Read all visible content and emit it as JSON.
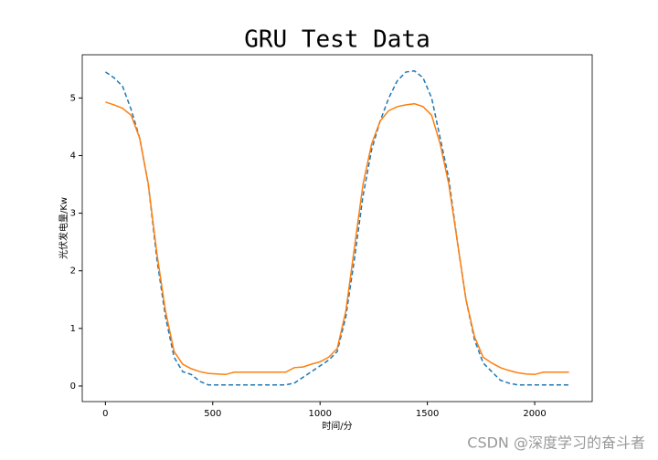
{
  "chart_data": {
    "type": "line",
    "title": "GRU Test Data",
    "xlabel": "时间/分",
    "ylabel": "光伏发电量/Kw",
    "x": [
      0,
      40,
      80,
      120,
      160,
      200,
      240,
      280,
      320,
      360,
      400,
      440,
      480,
      520,
      560,
      600,
      640,
      680,
      720,
      760,
      800,
      840,
      880,
      920,
      960,
      1000,
      1040,
      1080,
      1120,
      1160,
      1200,
      1240,
      1280,
      1320,
      1360,
      1400,
      1440,
      1480,
      1520,
      1560,
      1600,
      1640,
      1680,
      1720,
      1760,
      1800,
      1840,
      1880,
      1920,
      1960,
      2000,
      2040,
      2080,
      2120,
      2160
    ],
    "series": [
      {
        "color": "#1f77b4",
        "dashed": true,
        "values": [
          5.45,
          5.35,
          5.2,
          4.8,
          4.3,
          3.5,
          2.2,
          1.2,
          0.5,
          0.25,
          0.2,
          0.08,
          0.02,
          0.02,
          0.02,
          0.02,
          0.02,
          0.02,
          0.02,
          0.02,
          0.02,
          0.02,
          0.05,
          0.15,
          0.25,
          0.35,
          0.45,
          0.6,
          1.2,
          2.2,
          3.3,
          4.1,
          4.6,
          5.0,
          5.3,
          5.45,
          5.47,
          5.35,
          5.0,
          4.3,
          3.6,
          2.5,
          1.5,
          0.8,
          0.4,
          0.25,
          0.1,
          0.05,
          0.02,
          0.02,
          0.02,
          0.02,
          0.02,
          0.02,
          0.02
        ]
      },
      {
        "color": "#ff7f0e",
        "dashed": false,
        "values": [
          4.93,
          4.88,
          4.82,
          4.7,
          4.3,
          3.5,
          2.3,
          1.3,
          0.6,
          0.38,
          0.3,
          0.25,
          0.22,
          0.21,
          0.2,
          0.24,
          0.24,
          0.24,
          0.24,
          0.24,
          0.24,
          0.24,
          0.32,
          0.33,
          0.38,
          0.42,
          0.5,
          0.65,
          1.3,
          2.4,
          3.5,
          4.2,
          4.6,
          4.78,
          4.85,
          4.88,
          4.9,
          4.85,
          4.7,
          4.2,
          3.5,
          2.5,
          1.5,
          0.85,
          0.5,
          0.4,
          0.32,
          0.27,
          0.23,
          0.21,
          0.2,
          0.24,
          0.24,
          0.24,
          0.24
        ]
      }
    ],
    "xlim": [
      -108,
      2268
    ],
    "ylim": [
      -0.27,
      5.75
    ],
    "xticks": [
      0,
      500,
      1000,
      1500,
      2000
    ],
    "yticks": [
      0,
      1,
      2,
      3,
      4,
      5
    ]
  },
  "watermark": "CSDN @深度学习的奋斗者"
}
